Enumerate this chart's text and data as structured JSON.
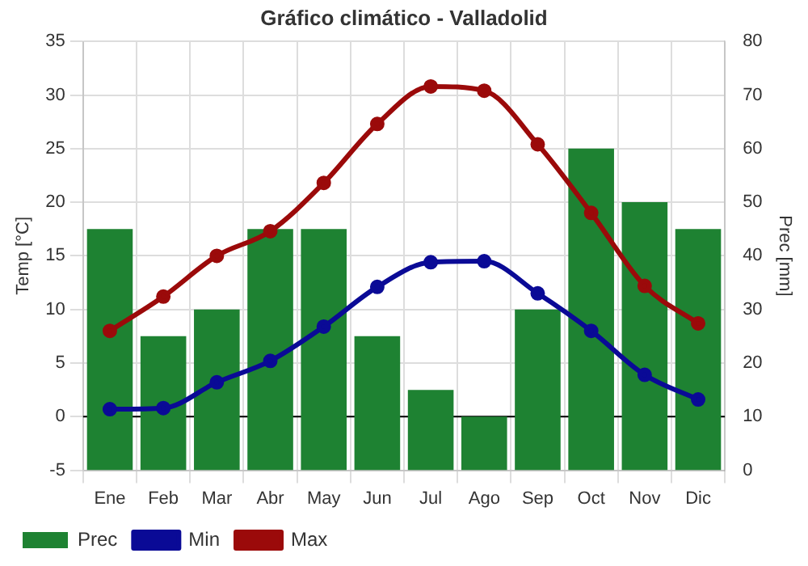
{
  "chart_data": {
    "type": "bar",
    "title": "Gráfico climático - Valladolid",
    "ylabel": "Temp [°C]",
    "y2label": "Prec [mm]",
    "categories": [
      "Ene",
      "Feb",
      "Mar",
      "Abr",
      "May",
      "Jun",
      "Jul",
      "Ago",
      "Sep",
      "Oct",
      "Nov",
      "Dic"
    ],
    "series": [
      {
        "name": "Prec",
        "axis": "y2",
        "color": "#1e8232",
        "values": [
          45,
          25,
          30,
          45,
          45,
          25,
          15,
          10,
          30,
          60,
          50,
          45
        ]
      },
      {
        "name": "Min",
        "type": "line",
        "color": "#0a0a96",
        "values": [
          0.7,
          0.8,
          3.2,
          5.2,
          8.4,
          12.1,
          14.4,
          14.5,
          11.5,
          8.0,
          3.9,
          1.6
        ]
      },
      {
        "name": "Max",
        "type": "line",
        "color": "#9b0a0a",
        "values": [
          8.0,
          11.2,
          15.0,
          17.3,
          21.8,
          27.3,
          30.8,
          30.4,
          25.4,
          19.0,
          12.2,
          8.7
        ]
      }
    ],
    "ylim": [
      -5,
      35
    ],
    "yticks": [
      -5,
      0,
      5,
      10,
      15,
      20,
      25,
      30,
      35
    ],
    "y2lim": [
      0,
      80
    ],
    "y2ticks": [
      0,
      10,
      20,
      30,
      40,
      50,
      60,
      70,
      80
    ],
    "ref_lines": [
      {
        "axis": "y",
        "value": 0,
        "color": "#000000"
      }
    ],
    "grid": true,
    "legend": "bottom left",
    "marker": "circle",
    "line_style": "solid"
  }
}
